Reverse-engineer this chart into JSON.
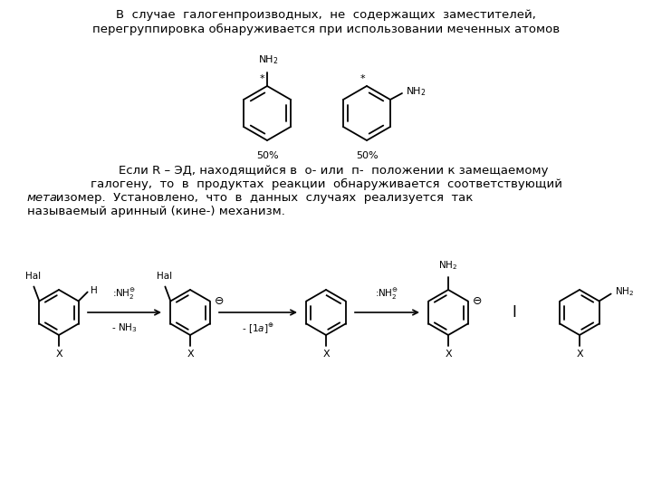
{
  "bg_color": "#ffffff",
  "text1": "В  случае  галогенпроизводных,  не  содержащих  заместителей,",
  "text2": "перегруппировка обнаруживается при использовании меченных атомов",
  "t3l1": "    Если R – ЭД, находящийся в  о- или  п-  положении к замещаемому",
  "t3l2": "галогену,  то  в  продуктах  реакции  обнаруживается  соответствующий",
  "t3l3_italic": "мета",
  "t3l3_rest": "-изомер.  Установлено,  что  в  данных  случаях  реализуется  так",
  "t3l4": "называемый аринный (кине-) механизм."
}
